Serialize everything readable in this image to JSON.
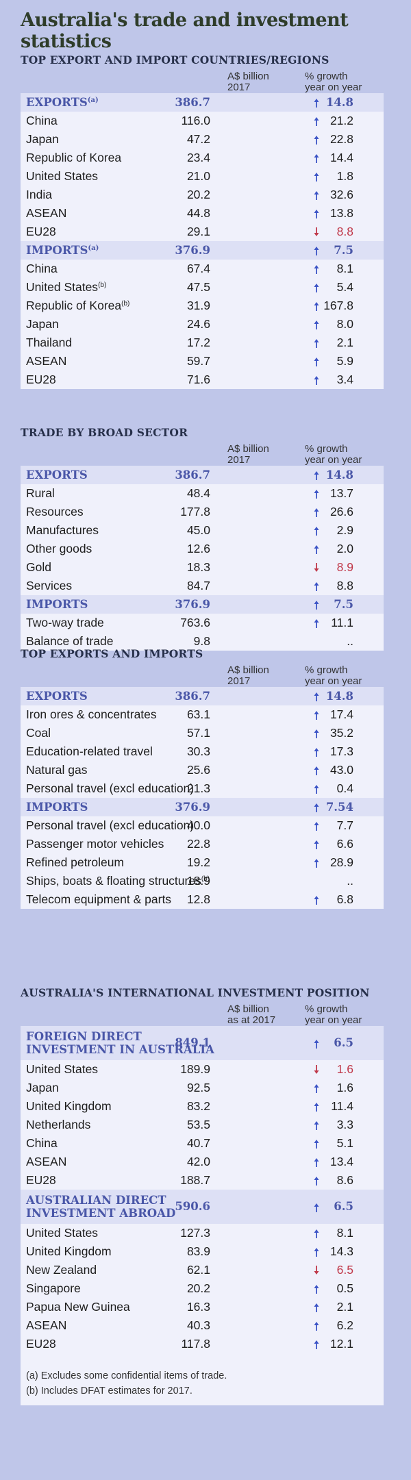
{
  "title": "Australia's trade and investment statistics",
  "up_color": "#3d55c6",
  "down_color": "#c0394a",
  "sections": [
    {
      "title": "TOP EXPORT AND IMPORT COUNTRIES/REGIONS",
      "col1": [
        "A$ billion",
        "2017"
      ],
      "col2": [
        "% growth",
        "year on year"
      ],
      "rows": [
        {
          "type": "head",
          "label": "EXPORTS",
          "sup": "(a)",
          "value": "386.7",
          "growth": "14.8",
          "dir": "up"
        },
        {
          "label": "China",
          "value": "116.0",
          "growth": "21.2",
          "dir": "up"
        },
        {
          "label": "Japan",
          "value": "47.2",
          "growth": "22.8",
          "dir": "up"
        },
        {
          "label": "Republic of Korea",
          "value": "23.4",
          "growth": "14.4",
          "dir": "up"
        },
        {
          "label": "United States",
          "value": "21.0",
          "growth": "1.8",
          "dir": "up"
        },
        {
          "label": "India",
          "value": "20.2",
          "growth": "32.6",
          "dir": "up"
        },
        {
          "label": "ASEAN",
          "value": "44.8",
          "growth": "13.8",
          "dir": "up"
        },
        {
          "label": "EU28",
          "value": "29.1",
          "growth": "8.8",
          "dir": "down"
        },
        {
          "type": "head",
          "label": "IMPORTS",
          "sup": "(a)",
          "value": "376.9",
          "growth": "7.5",
          "dir": "up"
        },
        {
          "label": "China",
          "value": "67.4",
          "growth": "8.1",
          "dir": "up"
        },
        {
          "label": "United States",
          "sup": "(b)",
          "value": "47.5",
          "growth": "5.4",
          "dir": "up"
        },
        {
          "label": "Republic of Korea",
          "sup": "(b)",
          "value": "31.9",
          "growth": "167.8",
          "dir": "up"
        },
        {
          "label": "Japan",
          "value": "24.6",
          "growth": "8.0",
          "dir": "up"
        },
        {
          "label": "Thailand",
          "value": "17.2",
          "growth": "2.1",
          "dir": "up"
        },
        {
          "label": "ASEAN",
          "value": "59.7",
          "growth": "5.9",
          "dir": "up"
        },
        {
          "label": "EU28",
          "value": "71.6",
          "growth": "3.4",
          "dir": "up"
        }
      ]
    },
    {
      "title": "TRADE BY BROAD SECTOR",
      "col1": [
        "A$ billion",
        "2017"
      ],
      "col2": [
        "% growth",
        "year on year"
      ],
      "rows": [
        {
          "type": "head",
          "label": "EXPORTS",
          "value": "386.7",
          "growth": "14.8",
          "dir": "up"
        },
        {
          "label": "Rural",
          "value": "48.4",
          "growth": "13.7",
          "dir": "up"
        },
        {
          "label": "Resources",
          "value": "177.8",
          "growth": "26.6",
          "dir": "up"
        },
        {
          "label": "Manufactures",
          "value": "45.0",
          "growth": "2.9",
          "dir": "up"
        },
        {
          "label": "Other goods",
          "value": "12.6",
          "growth": "2.0",
          "dir": "up"
        },
        {
          "label": "Gold",
          "value": "18.3",
          "growth": "8.9",
          "dir": "down"
        },
        {
          "label": "Services",
          "value": "84.7",
          "growth": "8.8",
          "dir": "up"
        },
        {
          "type": "head",
          "label": "IMPORTS",
          "value": "376.9",
          "growth": "7.5",
          "dir": "up"
        },
        {
          "label": "Two-way trade",
          "value": "763.6",
          "growth": "11.1",
          "dir": "up"
        },
        {
          "label": "Balance of trade",
          "value": "9.8",
          "growth": "..",
          "dir": "none"
        }
      ]
    },
    {
      "title": "TOP EXPORTS AND IMPORTS",
      "col1": [
        "A$ billion",
        "2017"
      ],
      "col2": [
        "% growth",
        "year on year"
      ],
      "rows": [
        {
          "type": "head",
          "label": "EXPORTS",
          "value": "386.7",
          "growth": "14.8",
          "dir": "up"
        },
        {
          "label": "Iron ores & concentrates",
          "value": "63.1",
          "growth": "17.4",
          "dir": "up"
        },
        {
          "label": "Coal",
          "value": "57.1",
          "growth": "35.2",
          "dir": "up"
        },
        {
          "label": "Education-related travel",
          "value": "30.3",
          "growth": "17.3",
          "dir": "up"
        },
        {
          "label": "Natural gas",
          "value": "25.6",
          "growth": "43.0",
          "dir": "up"
        },
        {
          "label": "Personal travel (excl education)",
          "value": "21.3",
          "growth": "0.4",
          "dir": "up"
        },
        {
          "type": "head",
          "label": "IMPORTS",
          "value": "376.9",
          "growth": "7.54",
          "dir": "up"
        },
        {
          "label": "Personal travel (excl education)",
          "value": "40.0",
          "growth": "7.7",
          "dir": "up"
        },
        {
          "label": "Passenger motor vehicles",
          "value": "22.8",
          "growth": "6.6",
          "dir": "up"
        },
        {
          "label": "Refined petroleum",
          "value": "19.2",
          "growth": "28.9",
          "dir": "up"
        },
        {
          "label": "Ships, boats & floating structures",
          "sup": "(b)",
          "value": "18.9",
          "growth": "..",
          "dir": "none"
        },
        {
          "label": "Telecom equipment & parts",
          "value": "12.8",
          "growth": "6.8",
          "dir": "up"
        }
      ]
    },
    {
      "title": "AUSTRALIA'S INTERNATIONAL INVESTMENT POSITION",
      "col1": [
        "A$ billion",
        "as at 2017"
      ],
      "col2": [
        "% growth",
        "year on year"
      ],
      "rows": [
        {
          "type": "head",
          "tall": true,
          "label": "FOREIGN DIRECT",
          "label2": "INVESTMENT IN AUSTRALIA",
          "value": "849.1",
          "growth": "6.5",
          "dir": "up"
        },
        {
          "label": "United States",
          "value": "189.9",
          "growth": "1.6",
          "dir": "down"
        },
        {
          "label": "Japan",
          "value": "92.5",
          "growth": "1.6",
          "dir": "up"
        },
        {
          "label": "United Kingdom",
          "value": "83.2",
          "growth": "11.4",
          "dir": "up"
        },
        {
          "label": "Netherlands",
          "value": "53.5",
          "growth": "3.3",
          "dir": "up"
        },
        {
          "label": "China",
          "value": "40.7",
          "growth": "5.1",
          "dir": "up"
        },
        {
          "label": "ASEAN",
          "value": "42.0",
          "growth": "13.4",
          "dir": "up"
        },
        {
          "label": "EU28",
          "value": "188.7",
          "growth": "8.6",
          "dir": "up"
        },
        {
          "type": "head",
          "tall": true,
          "label": "AUSTRALIAN DIRECT",
          "label2": "INVESTMENT ABROAD",
          "value": "590.6",
          "growth": "6.5",
          "dir": "up"
        },
        {
          "label": "United States",
          "value": "127.3",
          "growth": "8.1",
          "dir": "up"
        },
        {
          "label": "United Kingdom",
          "value": "83.9",
          "growth": "14.3",
          "dir": "up"
        },
        {
          "label": "New Zealand",
          "value": "62.1",
          "growth": "6.5",
          "dir": "down"
        },
        {
          "label": "Singapore",
          "value": "20.2",
          "growth": "0.5",
          "dir": "up"
        },
        {
          "label": "Papua New Guinea",
          "value": "16.3",
          "growth": "2.1",
          "dir": "up"
        },
        {
          "label": "ASEAN",
          "value": "40.3",
          "growth": "6.2",
          "dir": "up"
        },
        {
          "label": "EU28",
          "value": "117.8",
          "growth": "12.1",
          "dir": "up"
        }
      ],
      "footnotes": [
        "(a) Excludes some confidential items of trade.",
        "(b) Includes DFAT estimates for 2017."
      ]
    }
  ]
}
